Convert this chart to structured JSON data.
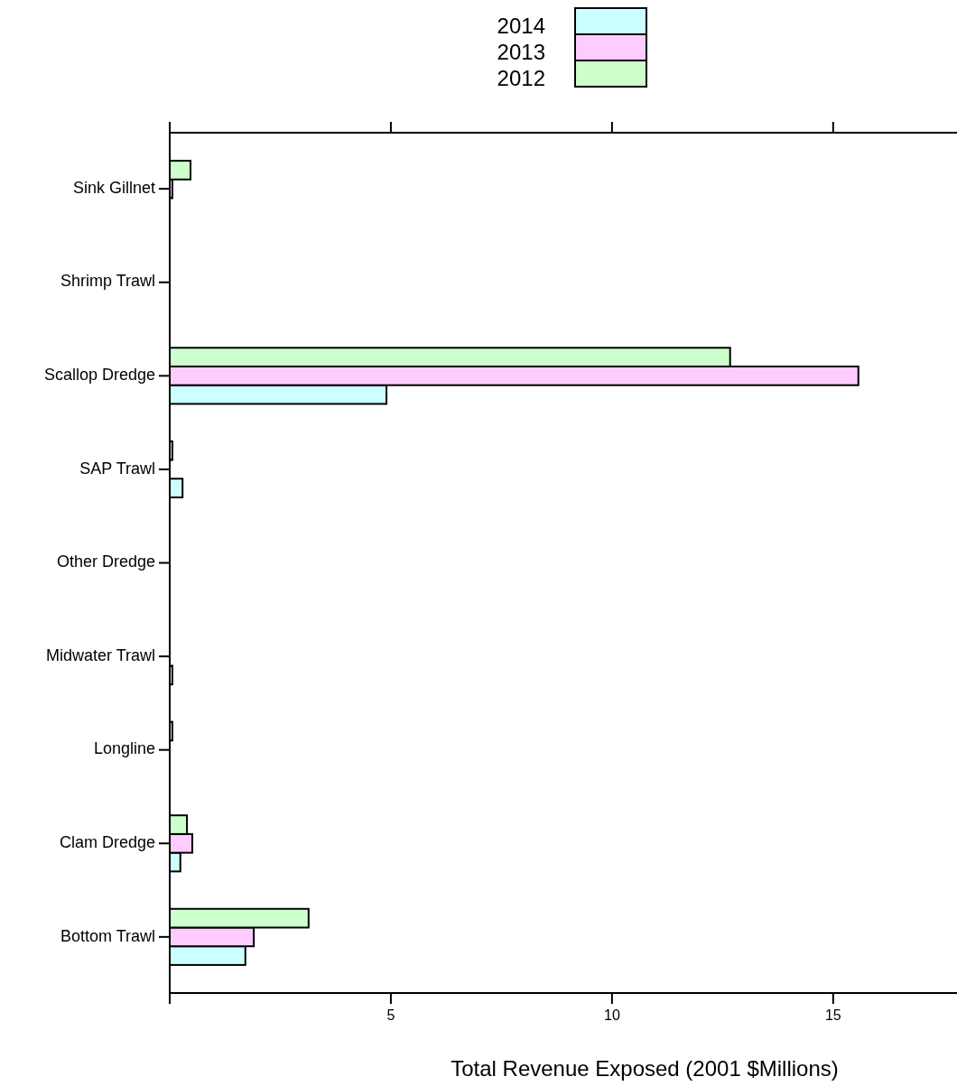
{
  "chart_data": {
    "type": "bar",
    "orientation": "horizontal",
    "xlabel": "Total Revenue Exposed (2001 $Millions)",
    "categories": [
      "Sink Gillnet",
      "Shrimp Trawl",
      "Scallop Dredge",
      "SAP Trawl",
      "Other Dredge",
      "Midwater Trawl",
      "Longline",
      "Clam Dredge",
      "Bottom Trawl"
    ],
    "series": [
      {
        "name": "2014",
        "color": "#ccffff",
        "values": [
          0,
          0,
          4.9,
          0.29,
          0,
          0.06,
          0,
          0.24,
          1.71
        ]
      },
      {
        "name": "2013",
        "color": "#ffccff",
        "values": [
          0.06,
          0,
          15.57,
          0,
          0,
          0,
          0,
          0.51,
          1.9
        ]
      },
      {
        "name": "2012",
        "color": "#ccffcc",
        "values": [
          0.47,
          0,
          12.67,
          0.06,
          0,
          0,
          0.06,
          0.39,
          3.14
        ]
      }
    ],
    "xlim": [
      0,
      17.8
    ],
    "xticks": [
      {
        "value": 0,
        "label": null
      },
      5,
      10,
      15
    ],
    "legend": "top",
    "grid": false
  }
}
